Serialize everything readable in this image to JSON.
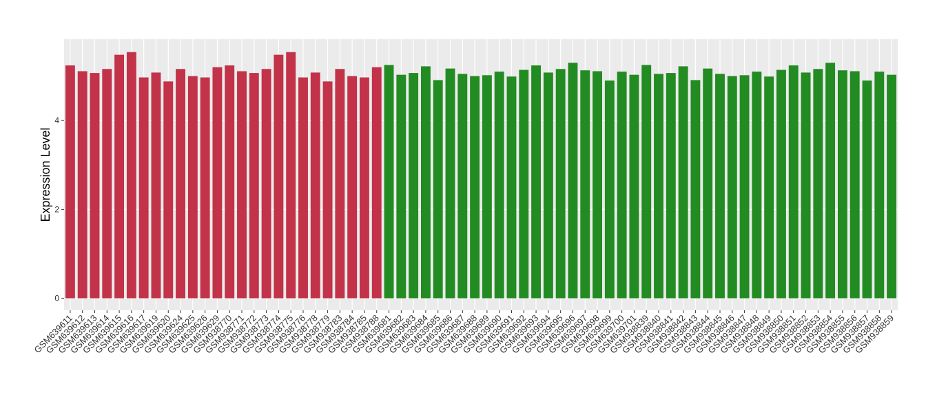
{
  "chart_data": {
    "type": "bar",
    "y_label": "Expression Level",
    "categories": [
      "GSM639611",
      "GSM639612",
      "GSM639613",
      "GSM639614",
      "GSM639615",
      "GSM639616",
      "GSM639617",
      "GSM639619",
      "GSM639620",
      "GSM639624",
      "GSM639625",
      "GSM639626",
      "GSM639629",
      "GSM938770",
      "GSM938771",
      "GSM938772",
      "GSM938773",
      "GSM938774",
      "GSM938775",
      "GSM938776",
      "GSM938778",
      "GSM938779",
      "GSM938783",
      "GSM938784",
      "GSM938785",
      "GSM938788",
      "GSM639681",
      "GSM639682",
      "GSM639683",
      "GSM639684",
      "GSM639685",
      "GSM639686",
      "GSM639687",
      "GSM639688",
      "GSM639689",
      "GSM639690",
      "GSM639691",
      "GSM639692",
      "GSM639693",
      "GSM639694",
      "GSM639695",
      "GSM639696",
      "GSM639697",
      "GSM639698",
      "GSM639699",
      "GSM639700",
      "GSM639701",
      "GSM938839",
      "GSM938840",
      "GSM938841",
      "GSM938842",
      "GSM938843",
      "GSM938844",
      "GSM938845",
      "GSM938846",
      "GSM938847",
      "GSM938848",
      "GSM938849",
      "GSM938850",
      "GSM938851",
      "GSM938852",
      "GSM938853",
      "GSM938854",
      "GSM938855",
      "GSM938856",
      "GSM938857",
      "GSM938858",
      "GSM938859"
    ],
    "values": [
      5.24,
      5.11,
      5.07,
      5.16,
      5.48,
      5.54,
      4.97,
      5.08,
      4.88,
      5.16,
      5.0,
      4.97,
      5.2,
      5.24,
      5.11,
      5.07,
      5.16,
      5.48,
      5.54,
      4.97,
      5.08,
      4.88,
      5.16,
      5.0,
      4.97,
      5.2,
      5.25,
      5.03,
      5.07,
      5.22,
      4.91,
      5.17,
      5.05,
      5.0,
      5.02,
      5.1,
      4.99,
      5.14,
      5.24,
      5.08,
      5.16,
      5.3,
      5.13,
      5.11,
      4.9,
      5.1,
      5.03,
      5.25,
      5.05,
      5.07,
      5.22,
      4.91,
      5.17,
      5.05,
      5.0,
      5.02,
      5.1,
      4.99,
      5.14,
      5.24,
      5.08,
      5.16,
      5.3,
      5.13,
      5.11,
      4.9,
      5.1,
      5.03
    ],
    "colors": [
      "#c23248",
      "#c23248",
      "#c23248",
      "#c23248",
      "#c23248",
      "#c23248",
      "#c23248",
      "#c23248",
      "#c23248",
      "#c23248",
      "#c23248",
      "#c23248",
      "#c23248",
      "#c23248",
      "#c23248",
      "#c23248",
      "#c23248",
      "#c23248",
      "#c23248",
      "#c23248",
      "#c23248",
      "#c23248",
      "#c23248",
      "#c23248",
      "#c23248",
      "#c23248",
      "#228b22",
      "#228b22",
      "#228b22",
      "#228b22",
      "#228b22",
      "#228b22",
      "#228b22",
      "#228b22",
      "#228b22",
      "#228b22",
      "#228b22",
      "#228b22",
      "#228b22",
      "#228b22",
      "#228b22",
      "#228b22",
      "#228b22",
      "#228b22",
      "#228b22",
      "#228b22",
      "#228b22",
      "#228b22",
      "#228b22",
      "#228b22",
      "#228b22",
      "#228b22",
      "#228b22",
      "#228b22",
      "#228b22",
      "#228b22",
      "#228b22",
      "#228b22",
      "#228b22",
      "#228b22",
      "#228b22",
      "#228b22",
      "#228b22",
      "#228b22",
      "#228b22",
      "#228b22",
      "#228b22",
      "#228b22"
    ],
    "ylim": [
      -0.27,
      5.83
    ],
    "yticks": [
      0,
      2,
      4
    ],
    "grid": true
  }
}
